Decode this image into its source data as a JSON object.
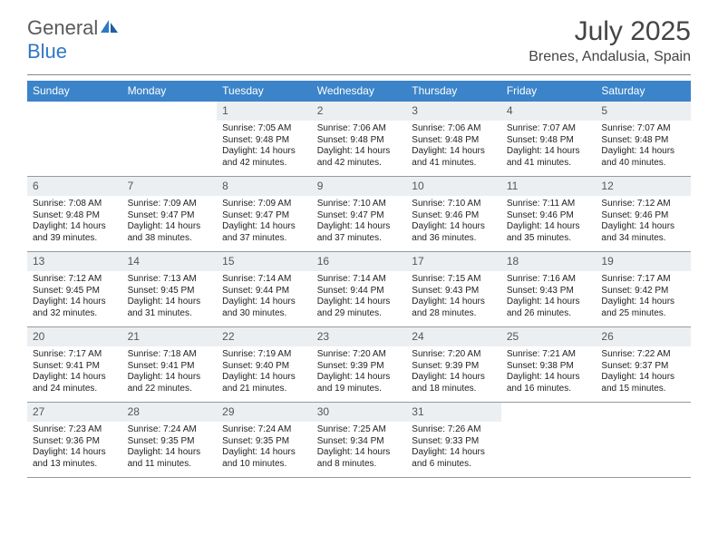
{
  "logo": {
    "part1": "General",
    "part2": "Blue"
  },
  "title": "July 2025",
  "location": "Brenes, Andalusia, Spain",
  "colors": {
    "header_bg": "#3b84c9",
    "header_text": "#ffffff",
    "daynum_bg": "#eceff2",
    "logo_gray": "#5a5a5a",
    "logo_blue": "#2f78c3",
    "border": "#999999"
  },
  "day_names": [
    "Sunday",
    "Monday",
    "Tuesday",
    "Wednesday",
    "Thursday",
    "Friday",
    "Saturday"
  ],
  "weeks": [
    [
      {
        "n": "",
        "lines": []
      },
      {
        "n": "",
        "lines": []
      },
      {
        "n": "1",
        "lines": [
          "Sunrise: 7:05 AM",
          "Sunset: 9:48 PM",
          "Daylight: 14 hours",
          "and 42 minutes."
        ]
      },
      {
        "n": "2",
        "lines": [
          "Sunrise: 7:06 AM",
          "Sunset: 9:48 PM",
          "Daylight: 14 hours",
          "and 42 minutes."
        ]
      },
      {
        "n": "3",
        "lines": [
          "Sunrise: 7:06 AM",
          "Sunset: 9:48 PM",
          "Daylight: 14 hours",
          "and 41 minutes."
        ]
      },
      {
        "n": "4",
        "lines": [
          "Sunrise: 7:07 AM",
          "Sunset: 9:48 PM",
          "Daylight: 14 hours",
          "and 41 minutes."
        ]
      },
      {
        "n": "5",
        "lines": [
          "Sunrise: 7:07 AM",
          "Sunset: 9:48 PM",
          "Daylight: 14 hours",
          "and 40 minutes."
        ]
      }
    ],
    [
      {
        "n": "6",
        "lines": [
          "Sunrise: 7:08 AM",
          "Sunset: 9:48 PM",
          "Daylight: 14 hours",
          "and 39 minutes."
        ]
      },
      {
        "n": "7",
        "lines": [
          "Sunrise: 7:09 AM",
          "Sunset: 9:47 PM",
          "Daylight: 14 hours",
          "and 38 minutes."
        ]
      },
      {
        "n": "8",
        "lines": [
          "Sunrise: 7:09 AM",
          "Sunset: 9:47 PM",
          "Daylight: 14 hours",
          "and 37 minutes."
        ]
      },
      {
        "n": "9",
        "lines": [
          "Sunrise: 7:10 AM",
          "Sunset: 9:47 PM",
          "Daylight: 14 hours",
          "and 37 minutes."
        ]
      },
      {
        "n": "10",
        "lines": [
          "Sunrise: 7:10 AM",
          "Sunset: 9:46 PM",
          "Daylight: 14 hours",
          "and 36 minutes."
        ]
      },
      {
        "n": "11",
        "lines": [
          "Sunrise: 7:11 AM",
          "Sunset: 9:46 PM",
          "Daylight: 14 hours",
          "and 35 minutes."
        ]
      },
      {
        "n": "12",
        "lines": [
          "Sunrise: 7:12 AM",
          "Sunset: 9:46 PM",
          "Daylight: 14 hours",
          "and 34 minutes."
        ]
      }
    ],
    [
      {
        "n": "13",
        "lines": [
          "Sunrise: 7:12 AM",
          "Sunset: 9:45 PM",
          "Daylight: 14 hours",
          "and 32 minutes."
        ]
      },
      {
        "n": "14",
        "lines": [
          "Sunrise: 7:13 AM",
          "Sunset: 9:45 PM",
          "Daylight: 14 hours",
          "and 31 minutes."
        ]
      },
      {
        "n": "15",
        "lines": [
          "Sunrise: 7:14 AM",
          "Sunset: 9:44 PM",
          "Daylight: 14 hours",
          "and 30 minutes."
        ]
      },
      {
        "n": "16",
        "lines": [
          "Sunrise: 7:14 AM",
          "Sunset: 9:44 PM",
          "Daylight: 14 hours",
          "and 29 minutes."
        ]
      },
      {
        "n": "17",
        "lines": [
          "Sunrise: 7:15 AM",
          "Sunset: 9:43 PM",
          "Daylight: 14 hours",
          "and 28 minutes."
        ]
      },
      {
        "n": "18",
        "lines": [
          "Sunrise: 7:16 AM",
          "Sunset: 9:43 PM",
          "Daylight: 14 hours",
          "and 26 minutes."
        ]
      },
      {
        "n": "19",
        "lines": [
          "Sunrise: 7:17 AM",
          "Sunset: 9:42 PM",
          "Daylight: 14 hours",
          "and 25 minutes."
        ]
      }
    ],
    [
      {
        "n": "20",
        "lines": [
          "Sunrise: 7:17 AM",
          "Sunset: 9:41 PM",
          "Daylight: 14 hours",
          "and 24 minutes."
        ]
      },
      {
        "n": "21",
        "lines": [
          "Sunrise: 7:18 AM",
          "Sunset: 9:41 PM",
          "Daylight: 14 hours",
          "and 22 minutes."
        ]
      },
      {
        "n": "22",
        "lines": [
          "Sunrise: 7:19 AM",
          "Sunset: 9:40 PM",
          "Daylight: 14 hours",
          "and 21 minutes."
        ]
      },
      {
        "n": "23",
        "lines": [
          "Sunrise: 7:20 AM",
          "Sunset: 9:39 PM",
          "Daylight: 14 hours",
          "and 19 minutes."
        ]
      },
      {
        "n": "24",
        "lines": [
          "Sunrise: 7:20 AM",
          "Sunset: 9:39 PM",
          "Daylight: 14 hours",
          "and 18 minutes."
        ]
      },
      {
        "n": "25",
        "lines": [
          "Sunrise: 7:21 AM",
          "Sunset: 9:38 PM",
          "Daylight: 14 hours",
          "and 16 minutes."
        ]
      },
      {
        "n": "26",
        "lines": [
          "Sunrise: 7:22 AM",
          "Sunset: 9:37 PM",
          "Daylight: 14 hours",
          "and 15 minutes."
        ]
      }
    ],
    [
      {
        "n": "27",
        "lines": [
          "Sunrise: 7:23 AM",
          "Sunset: 9:36 PM",
          "Daylight: 14 hours",
          "and 13 minutes."
        ]
      },
      {
        "n": "28",
        "lines": [
          "Sunrise: 7:24 AM",
          "Sunset: 9:35 PM",
          "Daylight: 14 hours",
          "and 11 minutes."
        ]
      },
      {
        "n": "29",
        "lines": [
          "Sunrise: 7:24 AM",
          "Sunset: 9:35 PM",
          "Daylight: 14 hours",
          "and 10 minutes."
        ]
      },
      {
        "n": "30",
        "lines": [
          "Sunrise: 7:25 AM",
          "Sunset: 9:34 PM",
          "Daylight: 14 hours",
          "and 8 minutes."
        ]
      },
      {
        "n": "31",
        "lines": [
          "Sunrise: 7:26 AM",
          "Sunset: 9:33 PM",
          "Daylight: 14 hours",
          "and 6 minutes."
        ]
      },
      {
        "n": "",
        "lines": []
      },
      {
        "n": "",
        "lines": []
      }
    ]
  ]
}
